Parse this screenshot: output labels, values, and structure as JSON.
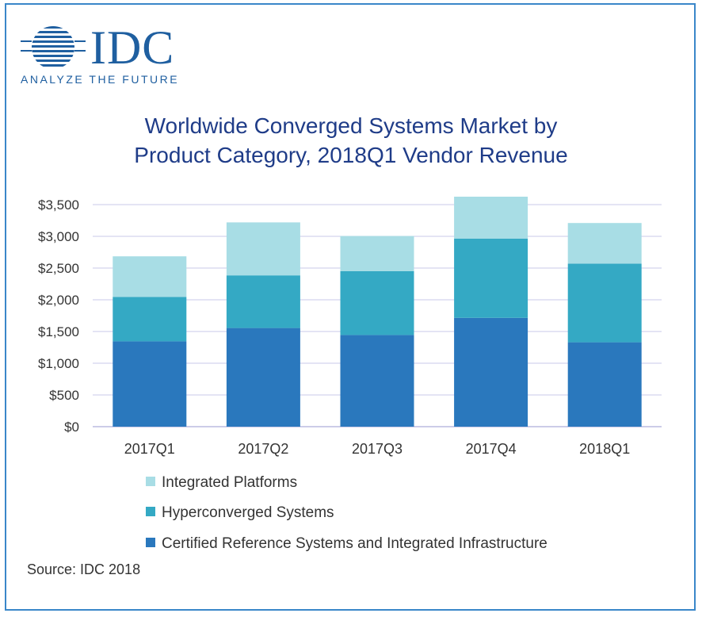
{
  "logo": {
    "name": "IDC",
    "tagline": "ANALYZE THE FUTURE"
  },
  "title_line1": "Worldwide Converged Systems Market by",
  "title_line2": "Product Category, 2018Q1 Vendor Revenue",
  "source": "Source: IDC 2018",
  "colors": {
    "integrated": "#a8dde5",
    "hyperconverged": "#34a9c4",
    "certified": "#2a78bd",
    "grid": "#c9c9e8",
    "title": "#1f3c88",
    "border": "#3a87c9"
  },
  "chart_data": {
    "type": "bar",
    "stacked": true,
    "title": "Worldwide Converged Systems Market by Product Category, 2018Q1 Vendor Revenue",
    "categories": [
      "2017Q1",
      "2017Q2",
      "2017Q3",
      "2017Q4",
      "2018Q1"
    ],
    "series": [
      {
        "name": "Certified Reference Systems and Integrated Infrastructure",
        "values": [
          1345,
          1555,
          1445,
          1715,
          1330
        ],
        "color": "#2a78bd"
      },
      {
        "name": "Hyperconverged Systems",
        "values": [
          700,
          830,
          1005,
          1250,
          1240
        ],
        "color": "#34a9c4"
      },
      {
        "name": "Integrated Platforms",
        "values": [
          640,
          835,
          555,
          660,
          640
        ],
        "color": "#a8dde5"
      }
    ],
    "ylim": [
      0,
      3500
    ],
    "yticks": [
      "$0",
      "$500",
      "$1,000",
      "$1,500",
      "$2,000",
      "$2,500",
      "$3,000",
      "$3,500"
    ],
    "ytick_values": [
      0,
      500,
      1000,
      1500,
      2000,
      2500,
      3000,
      3500
    ],
    "grid": true,
    "legend_placement": "bottom"
  },
  "legend_items": [
    {
      "label": "Integrated Platforms",
      "color": "#a8dde5"
    },
    {
      "label": "Hyperconverged Systems",
      "color": "#34a9c4"
    },
    {
      "label": "Certified Reference Systems and Integrated Infrastructure",
      "color": "#2a78bd"
    }
  ]
}
